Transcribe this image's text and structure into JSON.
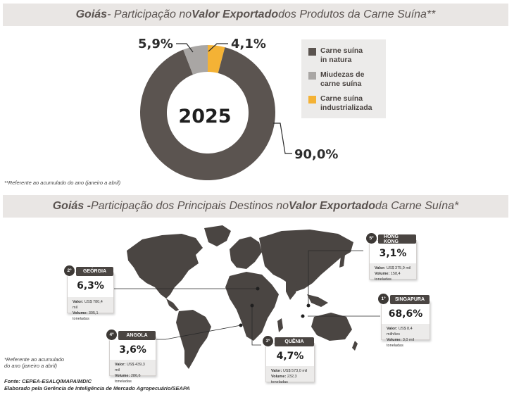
{
  "banner1": {
    "part1": "Goiás",
    "part2": " - Participação no ",
    "part3": "Valor Exportado",
    "part4": " dos Produtos da Carne Suína**"
  },
  "banner2": {
    "part1": "Goiás - ",
    "part2": "Participação dos Principais Destinos no ",
    "part3": "Valor Exportado",
    "part4": " da Carne Suína*"
  },
  "chart_data": {
    "type": "pie",
    "center_label": "2025",
    "slices": [
      {
        "name": "Carne suína in natura",
        "value": 90.0,
        "label": "90,0%",
        "color": "#5b5450"
      },
      {
        "name": "Miudezas de carne suína",
        "value": 5.9,
        "label": "5,9%",
        "color": "#a9a6a4"
      },
      {
        "name": "Carne suína industrializada",
        "value": 4.1,
        "label": "4,1%",
        "color": "#f4b235"
      }
    ]
  },
  "legend": {
    "items": [
      {
        "line1": "Carne suína",
        "line2": "in natura",
        "color": "#5b5450"
      },
      {
        "line1": "Miudezas de",
        "line2": "carne suína",
        "color": "#a9a6a4"
      },
      {
        "line1": "Carne suína",
        "line2": "industrializada",
        "color": "#f4b235"
      }
    ]
  },
  "footnote1": "**Referente ao acumulado do ano (janeiro a abril)",
  "footnote2": {
    "line1": "*Referente ao acumulado",
    "line2": "do ano (janeiro a abril)"
  },
  "source": {
    "line1": "Fonte: CEPEA-ESALQ/MAPA/MDIC",
    "line2": "Elaborado pela Gerência de Inteligência de Mercado Agropecuário/SEAPA"
  },
  "destinations": {
    "singapura": {
      "rank": "1º",
      "name": "SINGAPURA",
      "pct": "68,6%",
      "valor_label": "Valor:",
      "valor": "US$ 8,4 milhões",
      "volume_label": "Volume:",
      "volume": "3,0 mil toneladas"
    },
    "georgia": {
      "rank": "2º",
      "name": "GEÓRGIA",
      "pct": "6,3%",
      "valor_label": "Valor:",
      "valor": "US$ 780,4 mil",
      "volume_label": "Volume:",
      "volume": "305,1 toneladas"
    },
    "hongkong": {
      "rank": "5º",
      "name": "HONG KONG",
      "pct": "3,1%",
      "valor_label": "Valor:",
      "valor": "US$ 375,9 mil",
      "volume_label": "Volume:",
      "volume": "158,4 toneladas"
    },
    "angola": {
      "rank": "4º",
      "name": "ANGOLA",
      "pct": "3,6%",
      "valor_label": "Valor:",
      "valor": "US$ 439,3 mil",
      "volume_label": "Volume:",
      "volume": "286,6 toneladas"
    },
    "quenia": {
      "rank": "3º",
      "name": "QUÊNIA",
      "pct": "4,7%",
      "valor_label": "Valor:",
      "valor": "US$ 573,0 mil",
      "volume_label": "Volume:",
      "volume": "232,3 toneladas"
    }
  },
  "colors": {
    "map": "#4a4542",
    "connector": "#2a2a2a"
  }
}
